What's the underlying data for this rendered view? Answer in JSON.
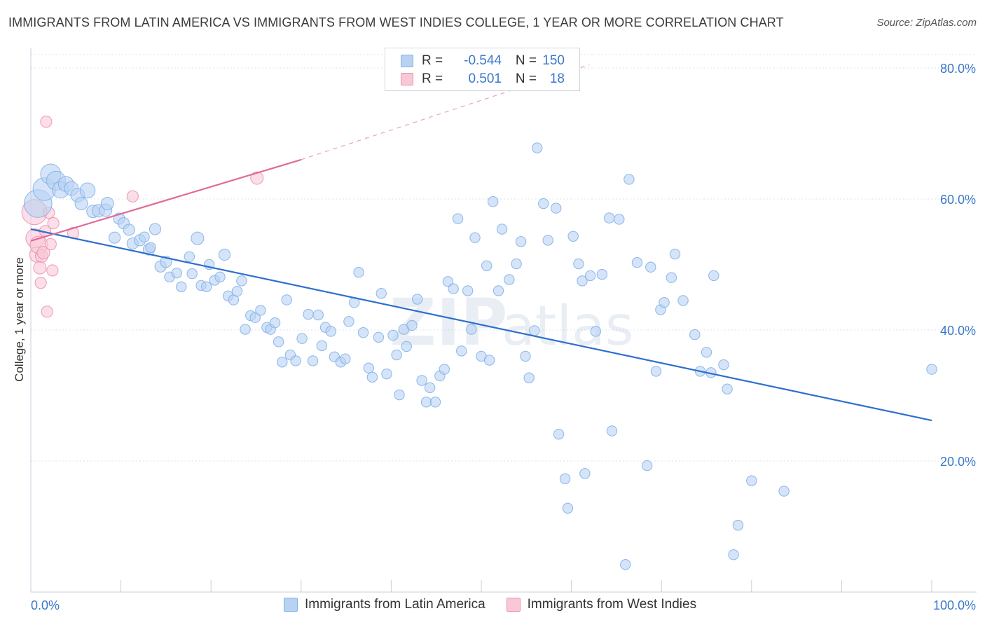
{
  "header": {
    "title": "IMMIGRANTS FROM LATIN AMERICA VS IMMIGRANTS FROM WEST INDIES COLLEGE, 1 YEAR OR MORE CORRELATION CHART",
    "source": "Source: ZipAtlas.com"
  },
  "watermark": {
    "zip": "ZIP",
    "atlas": "atlas"
  },
  "legend": {
    "r_label": "R =",
    "n_label": "N =",
    "series": [
      {
        "name": "Immigrants from Latin America",
        "r": "-0.544",
        "n": "150",
        "color": "#7fb0e8",
        "fill": "#b9d2f3"
      },
      {
        "name": "Immigrants from West Indies",
        "r": "0.501",
        "n": "18",
        "color": "#ec8fab",
        "fill": "#f8c8d7"
      }
    ]
  },
  "colors": {
    "blue_line": "#2e6fce",
    "pink_line": "#e06b96",
    "grid": "#dde3ea",
    "tick_text": "#3a78c9"
  },
  "chart_data": {
    "type": "scatter",
    "title": "IMMIGRANTS FROM LATIN AMERICA VS IMMIGRANTS FROM WEST INDIES COLLEGE, 1 YEAR OR MORE CORRELATION CHART",
    "xlabel": "",
    "ylabel": "College, 1 year or more",
    "xlim": [
      0,
      100
    ],
    "ylim": [
      0,
      80
    ],
    "x_tick_labels": [
      "0.0%",
      "100.0%"
    ],
    "y_ticks": [
      20,
      40,
      60,
      80
    ],
    "y_tick_labels": [
      "20.0%",
      "40.0%",
      "60.0%",
      "80.0%"
    ],
    "grid": true,
    "series": [
      {
        "name": "Immigrants from Latin America",
        "trend": {
          "x": [
            0,
            100
          ],
          "y": [
            55.4,
            26.2
          ],
          "style": "solid"
        },
        "points": [
          [
            0.8,
            59.3,
            2.2
          ],
          [
            1.5,
            61.5,
            1.8
          ],
          [
            2.2,
            63.8,
            1.6
          ],
          [
            2.8,
            62.8,
            1.5
          ],
          [
            3.3,
            61.4,
            1.3
          ],
          [
            3.9,
            62.3,
            1.2
          ],
          [
            4.5,
            61.6,
            1.1
          ],
          [
            5.2,
            60.6,
            1.1
          ],
          [
            5.6,
            59.3,
            1.0
          ],
          [
            6.3,
            61.3,
            1.2
          ],
          [
            6.9,
            58.1,
            1.0
          ],
          [
            7.5,
            58.2,
            1.0
          ],
          [
            8.3,
            58.3,
            1.0
          ],
          [
            8.5,
            59.3,
            1.0
          ],
          [
            9.8,
            57.0,
            0.9
          ],
          [
            10.3,
            56.3,
            0.9
          ],
          [
            9.3,
            54.1,
            0.9
          ],
          [
            10.9,
            55.3,
            0.9
          ],
          [
            11.3,
            53.2,
            0.9
          ],
          [
            12.1,
            53.7,
            0.9
          ],
          [
            12.6,
            54.2,
            0.8
          ],
          [
            13.1,
            52.3,
            0.9
          ],
          [
            13.3,
            52.6,
            0.8
          ],
          [
            13.8,
            55.4,
            0.9
          ],
          [
            14.4,
            49.7,
            0.9
          ],
          [
            15.0,
            50.4,
            0.9
          ],
          [
            15.4,
            48.1,
            0.8
          ],
          [
            16.2,
            48.7,
            0.8
          ],
          [
            16.7,
            46.6,
            0.8
          ],
          [
            17.6,
            51.2,
            0.8
          ],
          [
            17.9,
            48.6,
            0.8
          ],
          [
            18.5,
            54.0,
            1.0
          ],
          [
            18.9,
            46.8,
            0.8
          ],
          [
            19.5,
            46.6,
            0.8
          ],
          [
            19.8,
            50.0,
            0.8
          ],
          [
            20.4,
            47.6,
            0.8
          ],
          [
            21.0,
            48.1,
            0.8
          ],
          [
            21.5,
            51.5,
            0.9
          ],
          [
            21.9,
            45.2,
            0.8
          ],
          [
            22.5,
            44.6,
            0.8
          ],
          [
            22.9,
            45.9,
            0.8
          ],
          [
            23.4,
            47.5,
            0.8
          ],
          [
            23.8,
            40.1,
            0.8
          ],
          [
            24.4,
            42.2,
            0.8
          ],
          [
            24.9,
            41.9,
            0.8
          ],
          [
            25.5,
            43.0,
            0.8
          ],
          [
            26.2,
            40.4,
            0.8
          ],
          [
            26.6,
            40.1,
            0.8
          ],
          [
            27.1,
            41.1,
            0.8
          ],
          [
            27.5,
            38.2,
            0.8
          ],
          [
            27.9,
            35.1,
            0.8
          ],
          [
            28.4,
            44.6,
            0.8
          ],
          [
            28.8,
            36.2,
            0.8
          ],
          [
            29.4,
            35.3,
            0.8
          ],
          [
            30.1,
            38.7,
            0.8
          ],
          [
            30.8,
            42.4,
            0.8
          ],
          [
            31.3,
            35.3,
            0.8
          ],
          [
            31.9,
            42.3,
            0.8
          ],
          [
            32.3,
            37.6,
            0.8
          ],
          [
            32.7,
            40.4,
            0.8
          ],
          [
            33.3,
            39.8,
            0.8
          ],
          [
            33.7,
            35.9,
            0.8
          ],
          [
            34.4,
            35.1,
            0.8
          ],
          [
            34.9,
            35.6,
            0.8
          ],
          [
            35.3,
            41.3,
            0.8
          ],
          [
            35.9,
            44.2,
            0.8
          ],
          [
            36.4,
            48.8,
            0.8
          ],
          [
            36.9,
            39.6,
            0.8
          ],
          [
            37.5,
            34.2,
            0.8
          ],
          [
            37.9,
            32.8,
            0.8
          ],
          [
            38.6,
            38.9,
            0.8
          ],
          [
            38.9,
            45.6,
            0.8
          ],
          [
            39.5,
            33.3,
            0.8
          ],
          [
            40.2,
            39.2,
            0.8
          ],
          [
            40.6,
            36.2,
            0.8
          ],
          [
            40.9,
            30.1,
            0.8
          ],
          [
            41.4,
            40.1,
            0.8
          ],
          [
            41.7,
            37.5,
            0.8
          ],
          [
            42.3,
            40.7,
            0.8
          ],
          [
            42.9,
            44.7,
            0.8
          ],
          [
            43.4,
            32.3,
            0.8
          ],
          [
            43.9,
            29.0,
            0.8
          ],
          [
            44.3,
            31.2,
            0.8
          ],
          [
            44.9,
            29.0,
            0.8
          ],
          [
            45.4,
            33.0,
            0.8
          ],
          [
            45.9,
            34.0,
            0.8
          ],
          [
            46.3,
            47.4,
            0.8
          ],
          [
            46.9,
            46.3,
            0.8
          ],
          [
            47.4,
            57.0,
            0.8
          ],
          [
            47.8,
            36.8,
            0.8
          ],
          [
            48.5,
            46.0,
            0.8
          ],
          [
            48.9,
            40.1,
            0.8
          ],
          [
            49.3,
            54.1,
            0.8
          ],
          [
            50.0,
            36.0,
            0.8
          ],
          [
            50.6,
            49.8,
            0.8
          ],
          [
            50.9,
            35.4,
            0.8
          ],
          [
            51.3,
            59.6,
            0.8
          ],
          [
            51.9,
            46.0,
            0.8
          ],
          [
            52.3,
            55.4,
            0.8
          ],
          [
            53.1,
            47.7,
            0.8
          ],
          [
            53.9,
            50.1,
            0.8
          ],
          [
            54.4,
            53.5,
            0.8
          ],
          [
            54.9,
            36.0,
            0.8
          ],
          [
            55.3,
            32.7,
            0.8
          ],
          [
            55.9,
            39.9,
            0.8
          ],
          [
            56.2,
            67.8,
            0.8
          ],
          [
            56.9,
            59.3,
            0.8
          ],
          [
            57.4,
            53.7,
            0.8
          ],
          [
            58.3,
            58.6,
            0.8
          ],
          [
            58.6,
            24.1,
            0.8
          ],
          [
            59.3,
            17.3,
            0.8
          ],
          [
            59.6,
            12.8,
            0.8
          ],
          [
            60.2,
            54.3,
            0.8
          ],
          [
            60.8,
            50.1,
            0.8
          ],
          [
            61.2,
            47.5,
            0.8
          ],
          [
            61.5,
            18.1,
            0.8
          ],
          [
            62.1,
            48.3,
            0.8
          ],
          [
            62.7,
            39.8,
            0.8
          ],
          [
            63.4,
            48.5,
            0.8
          ],
          [
            64.2,
            57.1,
            0.8
          ],
          [
            64.5,
            24.6,
            0.8
          ],
          [
            65.3,
            56.9,
            0.8
          ],
          [
            66.4,
            63.0,
            0.8
          ],
          [
            66.0,
            4.2,
            0.8
          ],
          [
            67.3,
            50.3,
            0.8
          ],
          [
            68.4,
            19.3,
            0.8
          ],
          [
            68.8,
            49.6,
            0.8
          ],
          [
            69.4,
            33.7,
            0.8
          ],
          [
            69.9,
            43.1,
            0.8
          ],
          [
            70.3,
            44.2,
            0.8
          ],
          [
            71.1,
            48.0,
            0.8
          ],
          [
            71.5,
            51.6,
            0.8
          ],
          [
            72.4,
            44.5,
            0.8
          ],
          [
            73.7,
            39.3,
            0.8
          ],
          [
            74.3,
            33.7,
            0.8
          ],
          [
            75.0,
            36.6,
            0.8
          ],
          [
            75.5,
            33.5,
            0.8
          ],
          [
            75.8,
            48.3,
            0.8
          ],
          [
            76.9,
            34.7,
            0.8
          ],
          [
            77.3,
            31.0,
            0.8
          ],
          [
            78.0,
            5.7,
            0.8
          ],
          [
            78.5,
            10.2,
            0.8
          ],
          [
            80.0,
            17.0,
            0.8
          ],
          [
            83.6,
            15.4,
            0.8
          ],
          [
            100.0,
            34.0,
            0.8
          ]
        ]
      },
      {
        "name": "Immigrants from West Indies",
        "trend": {
          "x": [
            0,
            30
          ],
          "y": [
            53.6,
            66.0
          ],
          "style": "solid",
          "extension": {
            "x": [
              30,
              62
            ],
            "y": [
              66.0,
              80.5
            ],
            "style": "dashed"
          }
        },
        "points": [
          [
            0.4,
            58.0,
            2.0
          ],
          [
            0.5,
            54.0,
            1.5
          ],
          [
            0.7,
            51.5,
            1.2
          ],
          [
            0.9,
            53.0,
            1.4
          ],
          [
            1.0,
            49.5,
            1.0
          ],
          [
            1.1,
            47.2,
            0.9
          ],
          [
            1.2,
            51.3,
            1.0
          ],
          [
            1.4,
            51.8,
            1.0
          ],
          [
            1.6,
            55.1,
            0.9
          ],
          [
            1.7,
            71.8,
            0.9
          ],
          [
            1.8,
            42.8,
            0.9
          ],
          [
            2.2,
            53.1,
            0.9
          ],
          [
            2.0,
            57.9,
            0.9
          ],
          [
            2.4,
            49.1,
            0.9
          ],
          [
            2.5,
            56.3,
            0.9
          ],
          [
            4.7,
            54.8,
            0.9
          ],
          [
            11.3,
            60.4,
            0.9
          ],
          [
            25.1,
            63.2,
            1.0
          ]
        ]
      }
    ]
  }
}
